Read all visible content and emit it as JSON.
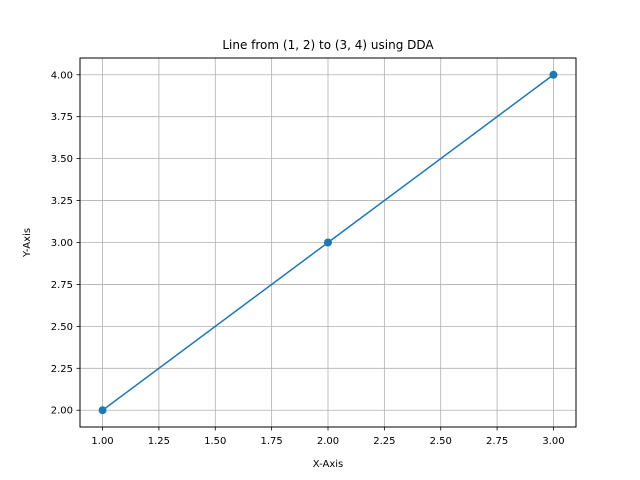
{
  "chart_data": {
    "type": "line",
    "title": "Line from (1, 2) to (3, 4) using DDA",
    "xlabel": "X-Axis",
    "ylabel": "Y-Axis",
    "xlim": [
      0.9,
      3.1
    ],
    "ylim": [
      1.9,
      4.1
    ],
    "x_ticks": [
      1.0,
      1.25,
      1.5,
      1.75,
      2.0,
      2.25,
      2.5,
      2.75,
      3.0
    ],
    "y_ticks": [
      2.0,
      2.25,
      2.5,
      2.75,
      3.0,
      3.25,
      3.5,
      3.75,
      4.0
    ],
    "x_tick_labels": [
      "1.00",
      "1.25",
      "1.50",
      "1.75",
      "2.00",
      "2.25",
      "2.50",
      "2.75",
      "3.00"
    ],
    "y_tick_labels": [
      "2.00",
      "2.25",
      "2.50",
      "2.75",
      "3.00",
      "3.25",
      "3.50",
      "3.75",
      "4.00"
    ],
    "grid": true,
    "legend": "none",
    "series": [
      {
        "x": [
          1,
          2,
          3
        ],
        "y": [
          2,
          3,
          4
        ],
        "marker": "circle",
        "color": "#1f77b4"
      }
    ]
  }
}
